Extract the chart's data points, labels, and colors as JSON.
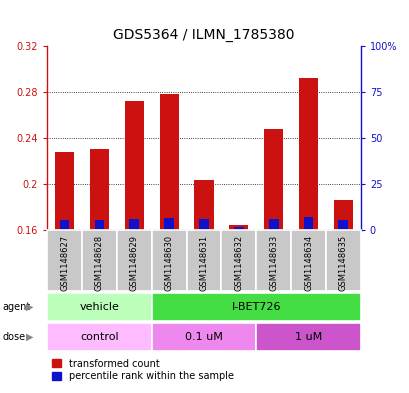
{
  "title": "GDS5364 / ILMN_1785380",
  "samples": [
    "GSM1148627",
    "GSM1148628",
    "GSM1148629",
    "GSM1148630",
    "GSM1148631",
    "GSM1148632",
    "GSM1148633",
    "GSM1148634",
    "GSM1148635"
  ],
  "transformed_count": [
    0.228,
    0.23,
    0.272,
    0.278,
    0.204,
    0.165,
    0.248,
    0.292,
    0.186
  ],
  "baseline": 0.16,
  "percentile_rank": [
    5.5,
    5.5,
    6.0,
    6.5,
    6.0,
    2.0,
    6.0,
    7.0,
    5.5
  ],
  "percentile_max": 100,
  "ylim_left": [
    0.16,
    0.32
  ],
  "ylim_right": [
    0,
    100
  ],
  "yticks_left": [
    0.16,
    0.2,
    0.24,
    0.28,
    0.32
  ],
  "ytick_labels_left": [
    "0.16",
    "0.2",
    "0.24",
    "0.28",
    "0.32"
  ],
  "yticks_right": [
    0,
    25,
    50,
    75,
    100
  ],
  "ytick_labels_right": [
    "0",
    "25",
    "50",
    "75",
    "100%"
  ],
  "agent_groups": [
    {
      "label": "vehicle",
      "start": 0,
      "end": 3,
      "color": "#bbffbb"
    },
    {
      "label": "I-BET726",
      "start": 3,
      "end": 9,
      "color": "#44dd44"
    }
  ],
  "dose_groups": [
    {
      "label": "control",
      "start": 0,
      "end": 3,
      "color": "#ffbbff"
    },
    {
      "label": "0.1 uM",
      "start": 3,
      "end": 6,
      "color": "#ee88ee"
    },
    {
      "label": "1 uM",
      "start": 6,
      "end": 9,
      "color": "#cc55cc"
    }
  ],
  "bar_color_red": "#cc1111",
  "bar_color_blue": "#1111cc",
  "bar_width": 0.55,
  "blue_bar_width": 0.28,
  "bg_color": "#ffffff",
  "plot_bg": "#ffffff",
  "grid_color": "#000000",
  "left_tick_color": "#cc1111",
  "right_tick_color": "#1111cc",
  "legend_red_label": "transformed count",
  "legend_blue_label": "percentile rank within the sample",
  "font_size_title": 10,
  "font_size_ticks": 7,
  "font_size_labels": 6,
  "font_size_legend": 7,
  "font_size_group": 8,
  "font_size_rowlabel": 7
}
